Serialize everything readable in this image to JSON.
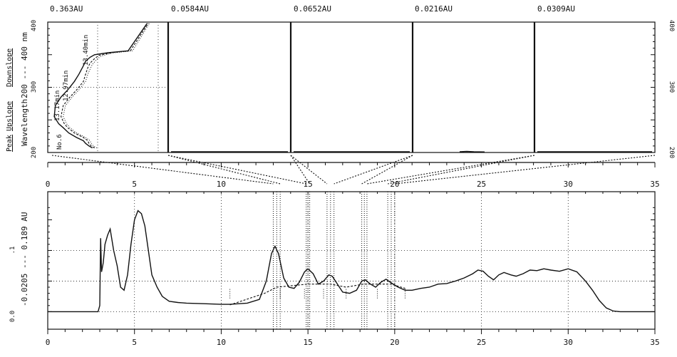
{
  "chart_data": [
    {
      "type": "line",
      "chart_name": "uv-spectra",
      "top_labels": [
        "0.363AU",
        "0.0584AU",
        "0.0652AU",
        "0.0216AU",
        "0.0309AU"
      ],
      "ylabel_parts": {
        "peak": "Peak",
        "upslope": "Upslope",
        "downslope": "Downslope",
        "wavelength": "Wavelength",
        "mid": "200 --- 400 nm"
      },
      "y_ticks": [
        "400",
        "300",
        "200"
      ],
      "ylim": [
        200,
        400
      ],
      "panel_annotations": [
        "No.6",
        "13.17min",
        "12.97min",
        "13.40min"
      ],
      "panel_count": 5,
      "series": [
        {
          "style": "solid",
          "x": [
            0.36,
            0.33,
            0.3,
            0.28,
            0.22,
            0.15,
            0.1,
            0.06,
            0.02,
            0.03,
            0.08,
            0.14,
            0.2,
            0.24,
            0.28,
            0.3,
            0.34,
            0.38,
            0.5,
            0.68,
            0.85
          ],
          "y": [
            207,
            210,
            214,
            218,
            223,
            230,
            238,
            244,
            255,
            272,
            285,
            296,
            309,
            320,
            333,
            340,
            346,
            350,
            353,
            356,
            398
          ]
        },
        {
          "style": "dashed",
          "x": [
            0.38,
            0.35,
            0.33,
            0.32,
            0.28,
            0.2,
            0.14,
            0.11,
            0.08,
            0.1,
            0.16,
            0.22,
            0.28,
            0.3,
            0.32,
            0.34,
            0.38,
            0.42,
            0.53,
            0.7,
            0.86
          ],
          "y": [
            207,
            210,
            214,
            218,
            223,
            230,
            238,
            244,
            255,
            272,
            285,
            296,
            309,
            320,
            330,
            337,
            344,
            349,
            353,
            356,
            398
          ]
        },
        {
          "style": "dotted",
          "x": [
            0.4,
            0.37,
            0.35,
            0.34,
            0.3,
            0.22,
            0.16,
            0.13,
            0.1,
            0.12,
            0.18,
            0.24,
            0.3,
            0.32,
            0.34,
            0.36,
            0.4,
            0.44,
            0.55,
            0.72,
            0.87
          ],
          "y": [
            207,
            210,
            214,
            218,
            223,
            230,
            238,
            244,
            255,
            272,
            285,
            296,
            309,
            320,
            328,
            335,
            343,
            348,
            353,
            356,
            398
          ]
        }
      ]
    },
    {
      "type": "line",
      "chart_name": "chromatogram",
      "xlim": [
        0,
        35
      ],
      "x_ticks_top": [
        "0",
        "5",
        "10",
        "15",
        "20",
        "25",
        "30",
        "35"
      ],
      "x_ticks_bottom": [
        "0",
        "5",
        "10",
        "15",
        "20",
        "25",
        "30",
        "35"
      ],
      "y_ticks": [
        "0.0",
        ".1"
      ],
      "ylabel": "-0.0205 --- 0.189 AU",
      "ylim": [
        -0.0205,
        0.189
      ],
      "peak_windows": [
        [
          13.0,
          13.4
        ],
        [
          14.9,
          15.1
        ],
        [
          16.1,
          16.5
        ],
        [
          18.1,
          18.4
        ],
        [
          19.6,
          20.0
        ]
      ],
      "series": [
        {
          "style": "solid",
          "x": [
            0,
            2.9,
            3.0,
            3.05,
            3.1,
            3.2,
            3.3,
            3.45,
            3.6,
            3.8,
            4.0,
            4.2,
            4.4,
            4.6,
            4.8,
            5.0,
            5.2,
            5.4,
            5.6,
            5.8,
            6.0,
            6.3,
            6.6,
            7.0,
            7.5,
            8.0,
            9.0,
            10.0,
            10.5,
            11.5,
            12.2,
            12.6,
            12.9,
            13.1,
            13.3,
            13.6,
            13.9,
            14.2,
            14.5,
            14.8,
            15.0,
            15.3,
            15.6,
            15.9,
            16.2,
            16.4,
            16.7,
            17.0,
            17.4,
            17.8,
            18.1,
            18.3,
            18.6,
            18.9,
            19.2,
            19.5,
            19.8,
            20.2,
            20.6,
            21.0,
            21.5,
            22.0,
            22.5,
            23.0,
            23.5,
            24.0,
            24.5,
            24.8,
            25.1,
            25.4,
            25.7,
            26.0,
            26.3,
            26.7,
            27.0,
            27.4,
            27.8,
            28.2,
            28.6,
            29.0,
            29.5,
            30.0,
            30.5,
            31.0,
            31.4,
            31.8,
            32.2,
            32.6,
            33.0,
            33.4,
            33.8,
            34.2,
            35.0
          ],
          "y": [
            0.0,
            0.0,
            0.01,
            0.12,
            0.065,
            0.08,
            0.11,
            0.125,
            0.135,
            0.1,
            0.075,
            0.04,
            0.035,
            0.06,
            0.11,
            0.15,
            0.165,
            0.16,
            0.14,
            0.1,
            0.06,
            0.04,
            0.025,
            0.017,
            0.015,
            0.014,
            0.013,
            0.012,
            0.012,
            0.014,
            0.02,
            0.05,
            0.095,
            0.107,
            0.095,
            0.055,
            0.04,
            0.038,
            0.048,
            0.065,
            0.07,
            0.062,
            0.045,
            0.05,
            0.06,
            0.058,
            0.045,
            0.032,
            0.03,
            0.035,
            0.05,
            0.052,
            0.045,
            0.04,
            0.048,
            0.053,
            0.047,
            0.04,
            0.035,
            0.035,
            0.038,
            0.04,
            0.045,
            0.046,
            0.05,
            0.055,
            0.062,
            0.068,
            0.066,
            0.058,
            0.052,
            0.06,
            0.064,
            0.06,
            0.058,
            0.062,
            0.068,
            0.067,
            0.07,
            0.068,
            0.066,
            0.07,
            0.065,
            0.05,
            0.035,
            0.018,
            0.006,
            0.001,
            0.0,
            0.0,
            0.0,
            0.0,
            0.0
          ]
        },
        {
          "style": "dashed",
          "x": [
            10.5,
            12.5,
            13.2,
            15.0,
            16.3,
            17.2,
            18.2,
            19.0,
            19.8,
            20.6
          ],
          "y": [
            0.011,
            0.03,
            0.04,
            0.045,
            0.045,
            0.04,
            0.045,
            0.045,
            0.045,
            0.038
          ]
        }
      ]
    }
  ]
}
